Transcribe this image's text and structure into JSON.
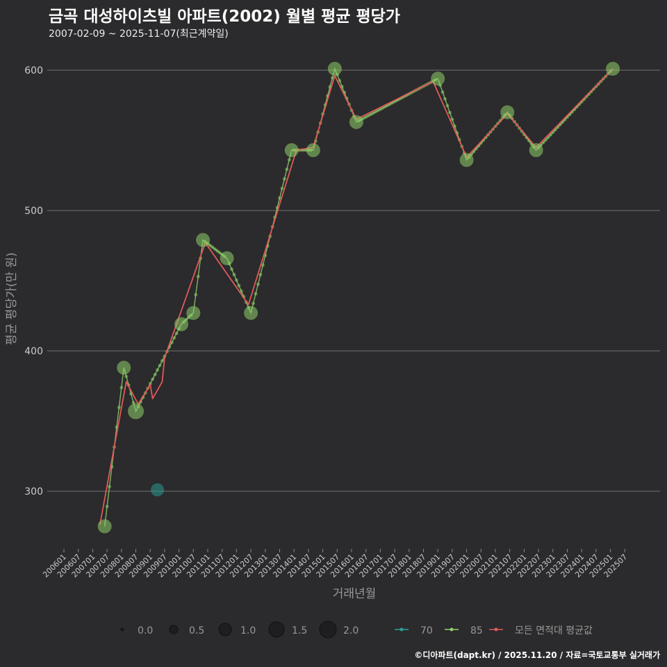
{
  "title": "금곡 대성하이츠빌 아파트(2002) 월별 평균 평당가",
  "subtitle": "2007-02-09 ~ 2025-11-07(최근계약일)",
  "footer": "©디아파트(dapt.kr) / 2025.11.20 / 자료=국토교통부 실거래가",
  "chart_data": {
    "type": "line",
    "xlabel": "거래년월",
    "ylabel": "평균 평당가(만 원)",
    "ylim": [
      258,
      618
    ],
    "yticks": [
      300,
      400,
      500,
      600
    ],
    "xticks": [
      "200601",
      "200607",
      "200701",
      "200707",
      "200801",
      "200807",
      "200901",
      "200907",
      "201001",
      "201007",
      "201101",
      "201107",
      "201201",
      "201207",
      "201301",
      "201307",
      "201401",
      "201407",
      "201501",
      "201507",
      "201601",
      "201607",
      "201701",
      "201707",
      "201801",
      "201807",
      "201901",
      "201907",
      "202001",
      "202007",
      "202101",
      "202107",
      "202201",
      "202207",
      "202301",
      "202307",
      "202401",
      "202407",
      "202501",
      "202507"
    ],
    "colors": {
      "s70": "#2aa198",
      "s85": "#8fd16a",
      "mean": "#e05a5a"
    },
    "series": [
      {
        "name": "70",
        "points": [
          {
            "x": "2009-04",
            "y": 301,
            "size": 1.0
          }
        ]
      },
      {
        "name": "85",
        "points": [
          {
            "x": "2007-06",
            "y": 275,
            "size": 1.0
          },
          {
            "x": "2008-02",
            "y": 388,
            "size": 1.0
          },
          {
            "x": "2008-07",
            "y": 357,
            "size": 1.6
          },
          {
            "x": "2010-02",
            "y": 419,
            "size": 1.0
          },
          {
            "x": "2010-07",
            "y": 427,
            "size": 1.0
          },
          {
            "x": "2010-11",
            "y": 479,
            "size": 1.0
          },
          {
            "x": "2011-09",
            "y": 466,
            "size": 1.0
          },
          {
            "x": "2012-07",
            "y": 427,
            "size": 1.0
          },
          {
            "x": "2013-12",
            "y": 543,
            "size": 1.0
          },
          {
            "x": "2014-09",
            "y": 543,
            "size": 1.0
          },
          {
            "x": "2015-06",
            "y": 601,
            "size": 1.0
          },
          {
            "x": "2016-03",
            "y": 563,
            "size": 1.0
          },
          {
            "x": "2019-01",
            "y": 594,
            "size": 1.0
          },
          {
            "x": "2020-01",
            "y": 536,
            "size": 1.0
          },
          {
            "x": "2021-06",
            "y": 570,
            "size": 1.0
          },
          {
            "x": "2022-06",
            "y": 543,
            "size": 1.0
          },
          {
            "x": "2025-02",
            "y": 601,
            "size": 1.0
          }
        ]
      },
      {
        "name": "모든 면적대 평균값",
        "points": [
          {
            "x": "2007-04",
            "y": 276
          },
          {
            "x": "2008-03",
            "y": 378
          },
          {
            "x": "2008-08",
            "y": 362
          },
          {
            "x": "2009-01",
            "y": 376
          },
          {
            "x": "2009-02",
            "y": 366
          },
          {
            "x": "2009-06",
            "y": 378
          },
          {
            "x": "2009-07",
            "y": 395
          },
          {
            "x": "2010-12",
            "y": 477
          },
          {
            "x": "2012-06",
            "y": 433
          },
          {
            "x": "2014-02",
            "y": 543
          },
          {
            "x": "2014-09",
            "y": 545
          },
          {
            "x": "2015-06",
            "y": 596
          },
          {
            "x": "2016-03",
            "y": 565
          },
          {
            "x": "2018-11",
            "y": 592
          },
          {
            "x": "2020-01",
            "y": 538
          },
          {
            "x": "2021-06",
            "y": 569
          },
          {
            "x": "2022-06",
            "y": 545
          },
          {
            "x": "2025-02",
            "y": 601
          }
        ]
      }
    ],
    "size_legend": [
      "0.0",
      "0.5",
      "1.0",
      "1.5",
      "2.0"
    ],
    "legend_position": "bottom"
  }
}
